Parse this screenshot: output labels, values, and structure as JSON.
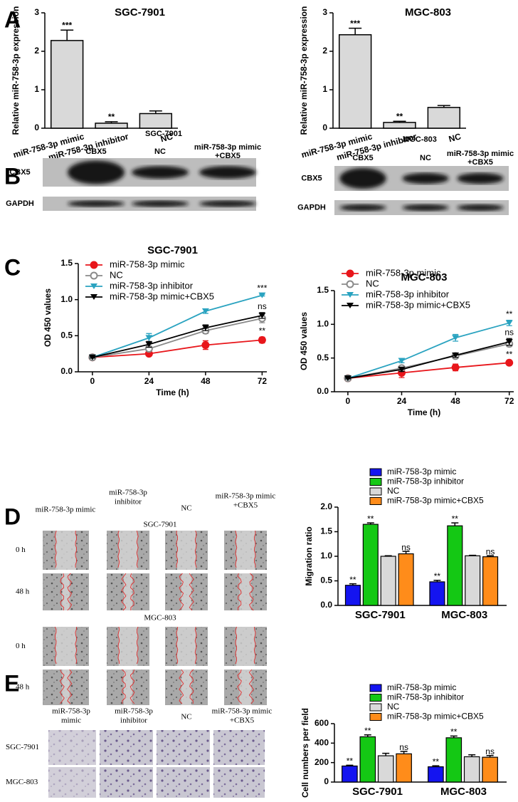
{
  "panel_labels": [
    "A",
    "B",
    "C",
    "D",
    "E"
  ],
  "chart_data": [
    {
      "type": "bar",
      "title": "SGC-7901",
      "ylabel": "Relative miR-758-3p expression",
      "categories": [
        "miR-758-3p mimic",
        "miR-758-3p inhibitor",
        "NC"
      ],
      "values": [
        2.28,
        0.13,
        0.38
      ],
      "errors": [
        0.27,
        0.04,
        0.07
      ],
      "annotations": [
        "***",
        "**",
        null
      ],
      "color": "#d9d9d9",
      "ylim": [
        0,
        3
      ],
      "yticks": [
        0,
        1,
        2,
        3
      ]
    },
    {
      "type": "bar",
      "title": "MGC-803",
      "ylabel": "Relative miR-758-3p expression",
      "categories": [
        "miR-758-3p mimic",
        "miR-758-3p inhibitor",
        "NC"
      ],
      "values": [
        2.43,
        0.15,
        0.54
      ],
      "errors": [
        0.17,
        0.03,
        0.05
      ],
      "annotations": [
        "***",
        "**",
        null
      ],
      "color": "#d9d9d9",
      "ylim": [
        0,
        3
      ],
      "yticks": [
        0,
        1,
        2,
        3
      ]
    },
    {
      "type": "line",
      "title": "SGC-7901",
      "xlabel": "Time (h)",
      "ylabel": "OD 450 values",
      "x": [
        0,
        24,
        48,
        72
      ],
      "xlim": [
        -6,
        74
      ],
      "xticks": [
        0,
        24,
        48,
        72
      ],
      "ylim": [
        0,
        1.5
      ],
      "yticks": [
        {
          "value": 0,
          "label": "0.0"
        },
        {
          "value": 0.5,
          "label": "0.5"
        },
        {
          "value": 1,
          "label": "1.0"
        },
        {
          "value": 1.5,
          "label": "1.5"
        }
      ],
      "legend": "top-left",
      "series": [
        {
          "name": "miR-758-3p mimic",
          "color": "#e8161b",
          "marker": "circle",
          "values": [
            0.2,
            0.25,
            0.37,
            0.44
          ],
          "errors": [
            0.01,
            0.02,
            0.06,
            0.04
          ],
          "annotations": [
            null,
            null,
            null,
            "**"
          ]
        },
        {
          "name": "NC",
          "color": "#8a8a8a",
          "marker": "circle-open",
          "values": [
            0.2,
            0.32,
            0.57,
            0.74
          ],
          "errors": [
            0.01,
            0.03,
            0.04,
            0.06
          ]
        },
        {
          "name": "miR-758-3p inhibitor",
          "color": "#2aa3c0",
          "marker": "triangle-down",
          "values": [
            0.2,
            0.47,
            0.84,
            1.06
          ],
          "errors": [
            0.01,
            0.06,
            0.03,
            0.01
          ],
          "annotations": [
            null,
            null,
            null,
            "***"
          ]
        },
        {
          "name": "miR-758-3p mimic+CBX5",
          "color": "#000000",
          "marker": "triangle-down",
          "values": [
            0.2,
            0.38,
            0.61,
            0.78
          ],
          "errors": [
            0.01,
            0.04,
            0.04,
            0.04
          ],
          "annotations": [
            null,
            null,
            null,
            "ns"
          ]
        }
      ]
    },
    {
      "type": "line",
      "title": "MGC-803",
      "xlabel": "Time (h)",
      "ylabel": "OD 450 values",
      "x": [
        0,
        24,
        48,
        72
      ],
      "xlim": [
        -6,
        74
      ],
      "xticks": [
        0,
        24,
        48,
        72
      ],
      "ylim": [
        0,
        1.5
      ],
      "yticks": [
        {
          "value": 0,
          "label": "0.0"
        },
        {
          "value": 0.5,
          "label": "0.5"
        },
        {
          "value": 1,
          "label": "1.0"
        },
        {
          "value": 1.5,
          "label": "1.5"
        }
      ],
      "legend": "top-left",
      "series": [
        {
          "name": "miR-758-3p mimic",
          "color": "#e8161b",
          "marker": "circle",
          "values": [
            0.2,
            0.28,
            0.36,
            0.43
          ],
          "errors": [
            0.01,
            0.07,
            0.05,
            0.03
          ],
          "annotations": [
            null,
            null,
            null,
            "**"
          ]
        },
        {
          "name": "NC",
          "color": "#8a8a8a",
          "marker": "circle-open",
          "values": [
            0.2,
            0.35,
            0.53,
            0.71
          ],
          "errors": [
            0.01,
            0.03,
            0.03,
            0.04
          ]
        },
        {
          "name": "miR-758-3p inhibitor",
          "color": "#2aa3c0",
          "marker": "triangle-down",
          "values": [
            0.2,
            0.46,
            0.8,
            1.02
          ],
          "errors": [
            0.01,
            0.03,
            0.05,
            0.04
          ],
          "annotations": [
            null,
            null,
            null,
            "**"
          ]
        },
        {
          "name": "miR-758-3p mimic+CBX5",
          "color": "#000000",
          "marker": "triangle-down",
          "values": [
            0.2,
            0.33,
            0.54,
            0.74
          ],
          "errors": [
            0.01,
            0.03,
            0.03,
            0.05
          ],
          "annotations": [
            null,
            null,
            null,
            "ns"
          ]
        }
      ]
    },
    {
      "type": "bar",
      "ylabel": "Migration ratio",
      "categories": [
        "SGC-7901",
        "MGC-803"
      ],
      "ylim": [
        0,
        2
      ],
      "yticks": [
        {
          "value": 0,
          "label": "0.0"
        },
        {
          "value": 0.5,
          "label": "0.5"
        },
        {
          "value": 1,
          "label": "1.0"
        },
        {
          "value": 1.5,
          "label": "1.5"
        },
        {
          "value": 2,
          "label": "2.0"
        }
      ],
      "legend": "top",
      "series": [
        {
          "name": "miR-758-3p mimic",
          "color": "#1414f0",
          "values": [
            0.41,
            0.48
          ],
          "errors": [
            0.03,
            0.03
          ],
          "annotations": [
            "**",
            "**"
          ]
        },
        {
          "name": "miR-758-3p inhibitor",
          "color": "#14c814",
          "values": [
            1.65,
            1.62
          ],
          "errors": [
            0.03,
            0.06
          ],
          "annotations": [
            "**",
            "**"
          ]
        },
        {
          "name": "NC",
          "color": "#d9d9d9",
          "values": [
            1.0,
            1.01
          ],
          "errors": [
            0.01,
            0.01
          ]
        },
        {
          "name": "miR-758-3p mimic+CBX5",
          "color": "#ff8c1a",
          "values": [
            1.05,
            0.99
          ],
          "errors": [
            0.05,
            0.02
          ],
          "annotations": [
            "ns",
            "ns"
          ]
        }
      ]
    },
    {
      "type": "bar",
      "ylabel": "Cell numbers per field",
      "categories": [
        "SGC-7901",
        "MGC-803"
      ],
      "ylim": [
        0,
        600
      ],
      "yticks": [
        0,
        200,
        400,
        600
      ],
      "legend": "top",
      "series": [
        {
          "name": "miR-758-3p mimic",
          "color": "#1414f0",
          "values": [
            165,
            157
          ],
          "errors": [
            8,
            10
          ],
          "annotations": [
            "**",
            "**"
          ]
        },
        {
          "name": "miR-758-3p inhibitor",
          "color": "#14c814",
          "values": [
            465,
            455
          ],
          "errors": [
            20,
            18
          ],
          "annotations": [
            "**",
            "**"
          ]
        },
        {
          "name": "NC",
          "color": "#d9d9d9",
          "values": [
            270,
            260
          ],
          "errors": [
            25,
            20
          ]
        },
        {
          "name": "miR-758-3p mimic+CBX5",
          "color": "#ff8c1a",
          "values": [
            290,
            255
          ],
          "errors": [
            25,
            18
          ],
          "annotations": [
            "ns",
            "ns"
          ]
        }
      ]
    }
  ],
  "blots": [
    {
      "title": "SGC-7901",
      "lanes": [
        [
          "CBX5"
        ],
        [
          "NC"
        ],
        [
          "miR-758-3p mimic",
          "+CBX5"
        ]
      ],
      "rows": [
        "CBX5",
        "GAPDH"
      ]
    },
    {
      "title": "MGC-803",
      "lanes": [
        [
          "CBX5"
        ],
        [
          "NC"
        ],
        [
          "miR-758-3p mimic",
          "+CBX5"
        ]
      ],
      "rows": [
        "CBX5",
        "GAPDH"
      ]
    }
  ],
  "wound": {
    "columns": [
      [
        "miR-758-3p mimic"
      ],
      [
        "miR-758-3p",
        "inhibitor"
      ],
      [
        "NC"
      ],
      [
        "miR-758-3p mimic",
        "+CBX5"
      ]
    ],
    "groups": [
      {
        "title": "SGC-7901",
        "rows": [
          "0 h",
          "48 h"
        ]
      },
      {
        "title": "MGC-803",
        "rows": [
          "0 h",
          "48 h"
        ]
      }
    ]
  },
  "invasion": {
    "columns": [
      [
        "miR-758-3p",
        "mimic"
      ],
      [
        "miR-758-3p",
        "inhibitor"
      ],
      [
        "NC"
      ],
      [
        "miR-758-3p mimic",
        "+CBX5"
      ]
    ],
    "rows": [
      "SGC-7901",
      "MGC-803"
    ]
  }
}
